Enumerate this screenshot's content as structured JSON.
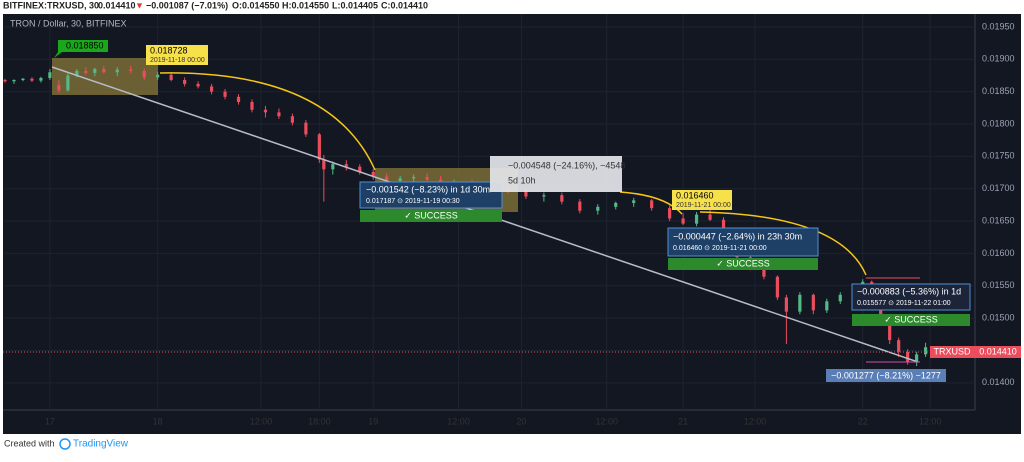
{
  "header": {
    "symbol": "BITFINEX:TRXUSD, 30",
    "last": "0.014410",
    "arrow": "▼",
    "change": "−0.001087 (−7.01%)",
    "open": "O:0.014550",
    "high": "H:0.014550",
    "low": "L:0.014405",
    "close": "C:0.014410"
  },
  "chart_data": {
    "type": "candlestick",
    "title": "TRON / Dollar, 30, BITFINEX",
    "x": [
      0,
      2,
      4,
      6,
      8,
      10,
      12,
      14,
      16,
      18,
      20,
      22,
      25,
      28,
      31,
      34,
      37,
      40,
      43,
      46,
      49,
      52,
      55,
      58,
      61,
      64,
      67,
      70,
      71,
      73,
      76,
      79,
      82,
      85,
      88,
      91,
      94,
      97,
      100,
      104,
      108,
      112,
      116,
      120,
      124,
      128,
      132,
      136,
      140,
      144,
      148,
      151,
      154,
      157,
      160,
      163,
      166,
      169,
      172,
      174,
      177,
      180,
      183,
      186,
      189,
      191,
      193,
      195,
      197,
      199,
      201,
      203,
      205,
      207
    ],
    "open": [
      0.01868,
      0.01866,
      0.01868,
      0.0187,
      0.01867,
      0.01871,
      0.0186,
      0.01852,
      0.01875,
      0.01882,
      0.01879,
      0.01885,
      0.0188,
      0.01884,
      0.01882,
      0.01872,
      0.01876,
      0.01868,
      0.01862,
      0.01858,
      0.0185,
      0.01842,
      0.01834,
      0.01822,
      0.01818,
      0.01812,
      0.01802,
      0.01784,
      0.01745,
      0.0173,
      0.01738,
      0.01734,
      0.01726,
      0.01719,
      0.01712,
      0.01716,
      0.01718,
      0.01714,
      0.01708,
      0.0171,
      0.01702,
      0.017,
      0.01696,
      0.01688,
      0.0169,
      0.0168,
      0.01666,
      0.01672,
      0.01678,
      0.01682,
      0.0167,
      0.01654,
      0.01646,
      0.0166,
      0.01652,
      0.01624,
      0.01594,
      0.01578,
      0.01564,
      0.01532,
      0.0151,
      0.01536,
      0.01512,
      0.01526,
      0.01536,
      0.01546,
      0.01556,
      0.01524,
      0.01496,
      0.01466,
      0.01448,
      0.01432,
      0.01444,
      0.01455
    ],
    "high": [
      0.0187,
      0.01869,
      0.01871,
      0.01872,
      0.01873,
      0.01885,
      0.01868,
      0.01878,
      0.01885,
      0.01888,
      0.01887,
      0.0189,
      0.01888,
      0.0189,
      0.01886,
      0.0188,
      0.0188,
      0.01872,
      0.01866,
      0.01862,
      0.01854,
      0.01846,
      0.01838,
      0.01828,
      0.01824,
      0.01816,
      0.01806,
      0.01786,
      0.01752,
      0.01742,
      0.01744,
      0.01738,
      0.0173,
      0.01724,
      0.0172,
      0.01722,
      0.01724,
      0.0172,
      0.01714,
      0.01714,
      0.01708,
      0.01706,
      0.017,
      0.01694,
      0.01694,
      0.01684,
      0.01676,
      0.0168,
      0.01686,
      0.01684,
      0.01674,
      0.01662,
      0.01664,
      0.0167,
      0.01656,
      0.01628,
      0.01598,
      0.01584,
      0.01566,
      0.01536,
      0.0154,
      0.01538,
      0.0153,
      0.0154,
      0.0155,
      0.0156,
      0.01558,
      0.01528,
      0.015,
      0.0147,
      0.01452,
      0.01448,
      0.01462,
      0.01455
    ],
    "low": [
      0.01864,
      0.01862,
      0.01866,
      0.01865,
      0.01864,
      0.01868,
      0.01848,
      0.0185,
      0.01872,
      0.01876,
      0.01874,
      0.01878,
      0.01874,
      0.01878,
      0.01868,
      0.01868,
      0.01866,
      0.01858,
      0.01855,
      0.01846,
      0.01838,
      0.0183,
      0.01818,
      0.0181,
      0.01808,
      0.01798,
      0.0178,
      0.0174,
      0.0168,
      0.01722,
      0.01728,
      0.01722,
      0.01714,
      0.01708,
      0.01706,
      0.01708,
      0.0171,
      0.01704,
      0.017,
      0.01698,
      0.01694,
      0.01692,
      0.01684,
      0.0168,
      0.01676,
      0.01662,
      0.0166,
      0.01668,
      0.01672,
      0.01666,
      0.0165,
      0.01644,
      0.01642,
      0.0165,
      0.0162,
      0.0159,
      0.01574,
      0.0156,
      0.01528,
      0.0146,
      0.01506,
      0.01506,
      0.01508,
      0.01522,
      0.0153,
      0.0154,
      0.0152,
      0.0149,
      0.0146,
      0.0144,
      0.01428,
      0.01426,
      0.0144,
      0.0144
    ],
    "close": [
      0.01866,
      0.01868,
      0.0187,
      0.01867,
      0.01871,
      0.0188,
      0.01852,
      0.01875,
      0.01882,
      0.01879,
      0.01885,
      0.0188,
      0.01884,
      0.01882,
      0.01872,
      0.01876,
      0.01868,
      0.01862,
      0.01858,
      0.0185,
      0.01842,
      0.01834,
      0.01822,
      0.01818,
      0.01812,
      0.01802,
      0.01784,
      0.01745,
      0.0173,
      0.01738,
      0.01734,
      0.01726,
      0.01719,
      0.01712,
      0.01716,
      0.01718,
      0.01714,
      0.01708,
      0.0171,
      0.01702,
      0.017,
      0.01696,
      0.01688,
      0.0169,
      0.0168,
      0.01666,
      0.01672,
      0.01678,
      0.01682,
      0.0167,
      0.01654,
      0.01646,
      0.0166,
      0.01652,
      0.01624,
      0.01594,
      0.01578,
      0.01564,
      0.01532,
      0.0151,
      0.01536,
      0.01512,
      0.01526,
      0.01536,
      0.01546,
      0.01556,
      0.01524,
      0.01496,
      0.01466,
      0.01448,
      0.01432,
      0.01444,
      0.01455,
      0.01441
    ],
    "up_color": "#53b987",
    "down_color": "#eb4d5c",
    "xlim": [
      0,
      216
    ],
    "xticks": [
      {
        "value": 10,
        "label": "17"
      },
      {
        "value": 34,
        "label": "18"
      },
      {
        "value": 57,
        "label": "12:00"
      },
      {
        "value": 70,
        "label": "18:00"
      },
      {
        "value": 82,
        "label": "19"
      },
      {
        "value": 101,
        "label": "12:00"
      },
      {
        "value": 115,
        "label": "20"
      },
      {
        "value": 134,
        "label": "12:00"
      },
      {
        "value": 151,
        "label": "21"
      },
      {
        "value": 167,
        "label": "12:00"
      },
      {
        "value": 191,
        "label": "22"
      },
      {
        "value": 206,
        "label": "12:00"
      }
    ],
    "ylim": [
      0.01358,
      0.0197
    ],
    "yticks": [
      {
        "value": 0.014,
        "label": "0.01400"
      },
      {
        "value": 0.0145,
        "label": "0.01450"
      },
      {
        "value": 0.015,
        "label": "0.01500"
      },
      {
        "value": 0.0155,
        "label": "0.01550"
      },
      {
        "value": 0.016,
        "label": "0.01600"
      },
      {
        "value": 0.0165,
        "label": "0.01650"
      },
      {
        "value": 0.017,
        "label": "0.01700"
      },
      {
        "value": 0.0175,
        "label": "0.01750"
      },
      {
        "value": 0.018,
        "label": "0.01800"
      },
      {
        "value": 0.0185,
        "label": "0.01850"
      },
      {
        "value": 0.019,
        "label": "0.01900"
      },
      {
        "value": 0.0195,
        "label": "0.01950"
      }
    ],
    "grid": true
  },
  "annotations": {
    "high_label": "0.018850",
    "start_price": "0.018728",
    "start_date": "2019-11-18 00:00",
    "m1_change": "−0.001542 (−8.23%) in 1d 30m",
    "m1_detail": "0.017187 ⊙ 2019-11-19 00:30",
    "m1_status": "✓ SUCCESS",
    "range_change": "−0.004548 (−24.16%), −4548",
    "range_time": "5d 10h",
    "p2_price": "0.016460",
    "p2_date": "2019-11-21 00:00",
    "m2_change": "−0.000447 (−2.64%) in 23h 30m",
    "m2_detail": "0.016460 ⊙ 2019-11-21 00:00",
    "m2_status": "✓ SUCCESS",
    "m3_change": "−0.000883 (−5.36%) in 1d",
    "m3_detail": "0.015577 ⊙ 2019-11-22 01:00",
    "m3_status": "✓ SUCCESS",
    "m4_change": "−0.001277 (−8.21%) −1277",
    "symbol_tag": "TRXUSD",
    "price_tag": "0.014410"
  },
  "footer": {
    "created": "Created with",
    "brand": "TradingView"
  }
}
